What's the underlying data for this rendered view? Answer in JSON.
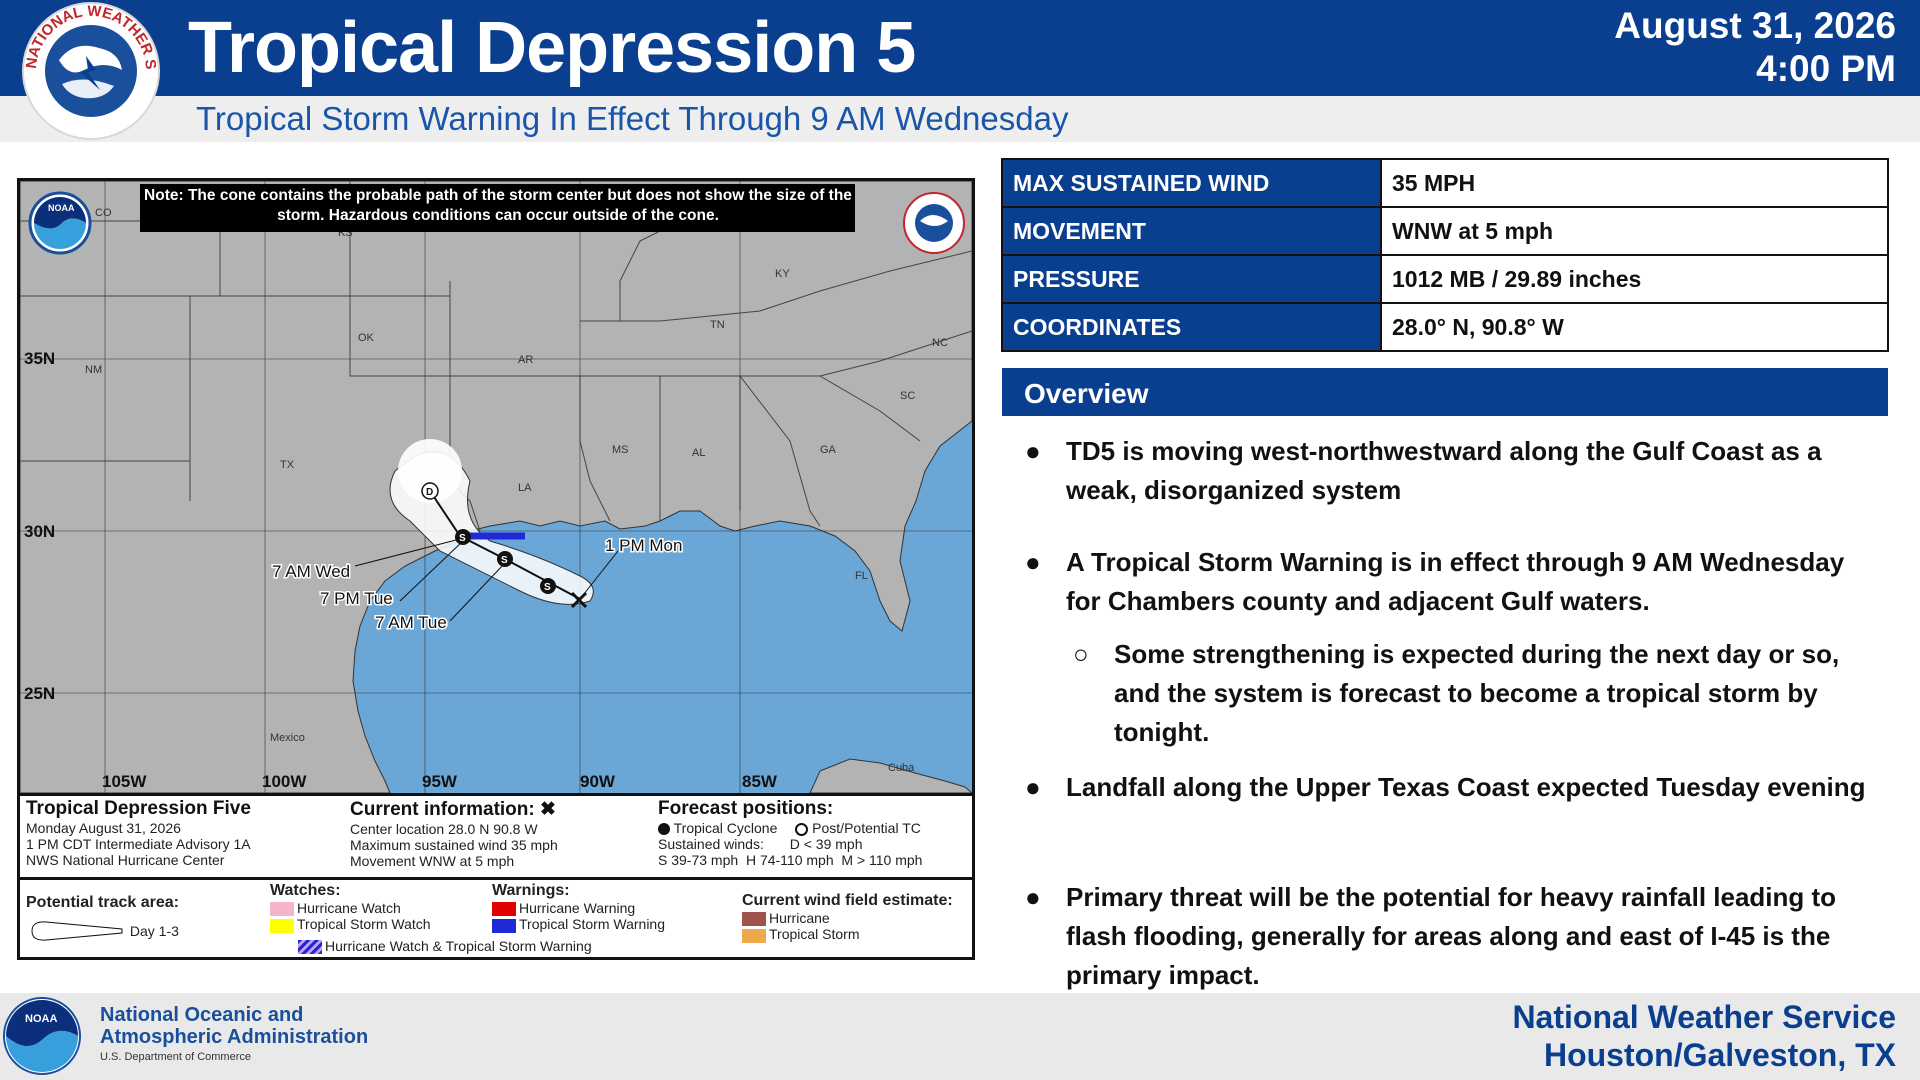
{
  "header": {
    "title": "Tropical Depression 5",
    "subtitle": "Tropical Storm Warning In Effect Through 9 AM Wednesday",
    "date": "August 31, 2026",
    "time": "4:00 PM",
    "logo_text": "NATIONAL WEATHER SERVICE"
  },
  "map": {
    "note": "Note: The cone contains the probable path of the storm center but does not show the size of the storm. Hazardous conditions can occur outside of the cone.",
    "noaa_logo": "NOAA",
    "lat_labels": [
      "35N",
      "30N",
      "25N"
    ],
    "lon_labels": [
      "105W",
      "100W",
      "95W",
      "90W",
      "85W"
    ],
    "state_labels": [
      "CO",
      "KS",
      "OK",
      "NM",
      "TX",
      "AR",
      "LA",
      "MS",
      "AL",
      "GA",
      "TN",
      "KY",
      "NC",
      "SC",
      "FL",
      "Mexico",
      "Cuba"
    ],
    "track_labels": [
      "7 AM Wed",
      "7 PM Tue",
      "7 AM Tue",
      "1 PM Mon"
    ],
    "markers": [
      "D",
      "S",
      "S",
      "S"
    ]
  },
  "legend": {
    "storm_name": "Tropical Depression Five",
    "storm_lines": [
      "Monday August 31, 2026",
      "1 PM CDT Intermediate Advisory 1A",
      "NWS National Hurricane Center"
    ],
    "current_title": "Current information: ✖",
    "current_lines": [
      "Center location 28.0 N 90.8 W",
      "Maximum sustained wind 35 mph",
      "Movement WNW at 5 mph"
    ],
    "forecast_title": "Forecast positions:",
    "forecast_tc": "Tropical Cyclone",
    "forecast_post": "Post/Potential TC",
    "forecast_sustained": "Sustained winds:",
    "forecast_d": "D < 39 mph",
    "forecast_line": "S 39-73 mph  H 74-110 mph  M > 110 mph",
    "track_area": "Potential track area:",
    "day": "Day 1-3",
    "watches_title": "Watches:",
    "hurricane_watch": "Hurricane Watch",
    "ts_watch": "Tropical Storm Watch",
    "combo": "Hurricane Watch & Tropical Storm Warning",
    "warnings_title": "Warnings:",
    "hurricane_warning": "Hurricane Warning",
    "ts_warning": "Tropical Storm Warning",
    "wind_title": "Current wind field estimate:",
    "wind_hurricane": "Hurricane",
    "wind_ts": "Tropical Storm"
  },
  "info_table": [
    {
      "label": "MAX SUSTAINED WIND",
      "value": "35 MPH"
    },
    {
      "label": "MOVEMENT",
      "value": "WNW at 5 mph"
    },
    {
      "label": "PRESSURE",
      "value": "1012 MB / 29.89 inches"
    },
    {
      "label": "COORDINATES",
      "value": "28.0° N, 90.8° W"
    }
  ],
  "overview": {
    "title": "Overview",
    "bullets": [
      "TD5 is moving west-northwestward along the Gulf Coast as a weak, disorganized system",
      "A Tropical Storm Warning is in effect through 9 AM Wednesday for Chambers county and adjacent Gulf waters.",
      "Some strengthening is expected during the next day or so, and the system is forecast to become a tropical storm by tonight.",
      "Landfall along the Upper Texas Coast expected Tuesday evening",
      "Primary threat will be the potential for heavy rainfall leading to flash flooding, generally for areas along and east of I-45 is the primary impact."
    ]
  },
  "footer": {
    "noaa_line1": "National Oceanic and",
    "noaa_line2": "Atmospheric Administration",
    "doc": "U.S. Department of Commerce",
    "nws_line1": "National Weather Service",
    "nws_line2": "Houston/Galveston, TX"
  },
  "colors": {
    "brand_blue": "#0a3f8f",
    "ocean": "#6aa6d6",
    "land": "#b3b3b3",
    "warning_blue": "#1f2ad6"
  }
}
